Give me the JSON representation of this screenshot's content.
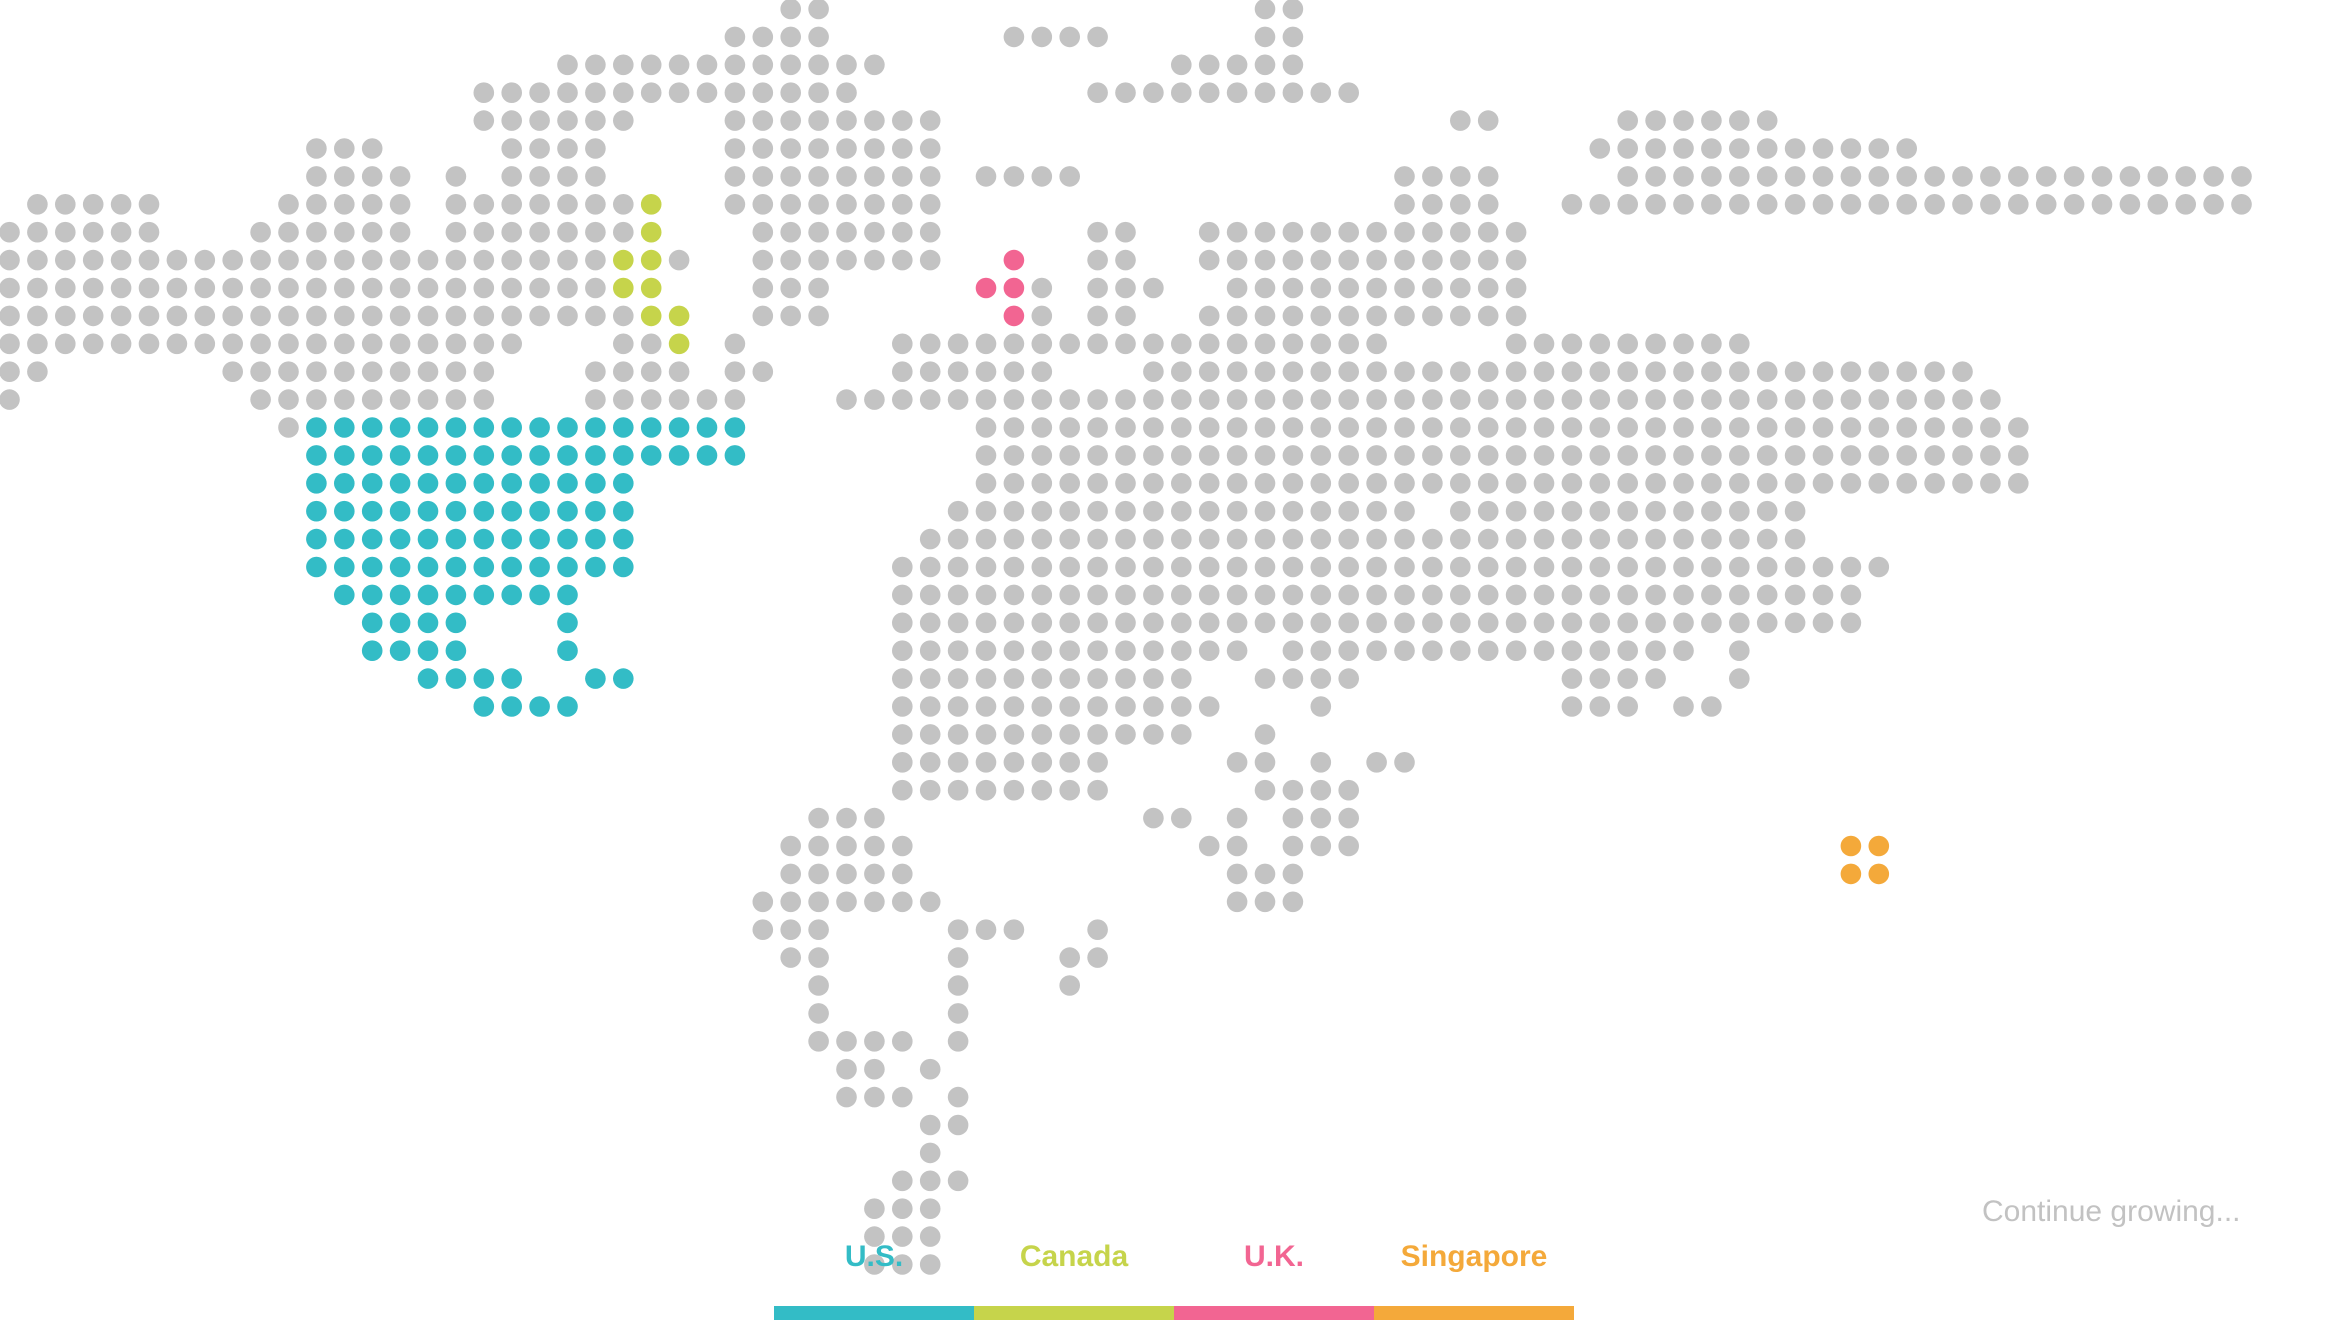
{
  "footer": {
    "continue_text": "Continue growing..."
  },
  "legend": [
    {
      "key": "us",
      "label": "U.S.",
      "color": "#33bcc6"
    },
    {
      "key": "canada",
      "label": "Canada",
      "color": "#c6d44b"
    },
    {
      "key": "uk",
      "label": "U.K.",
      "color": "#f26592"
    },
    {
      "key": "singapore",
      "label": "Singapore",
      "color": "#f4a93a"
    }
  ],
  "map_colors": {
    "land": "#c3c3c3"
  }
}
